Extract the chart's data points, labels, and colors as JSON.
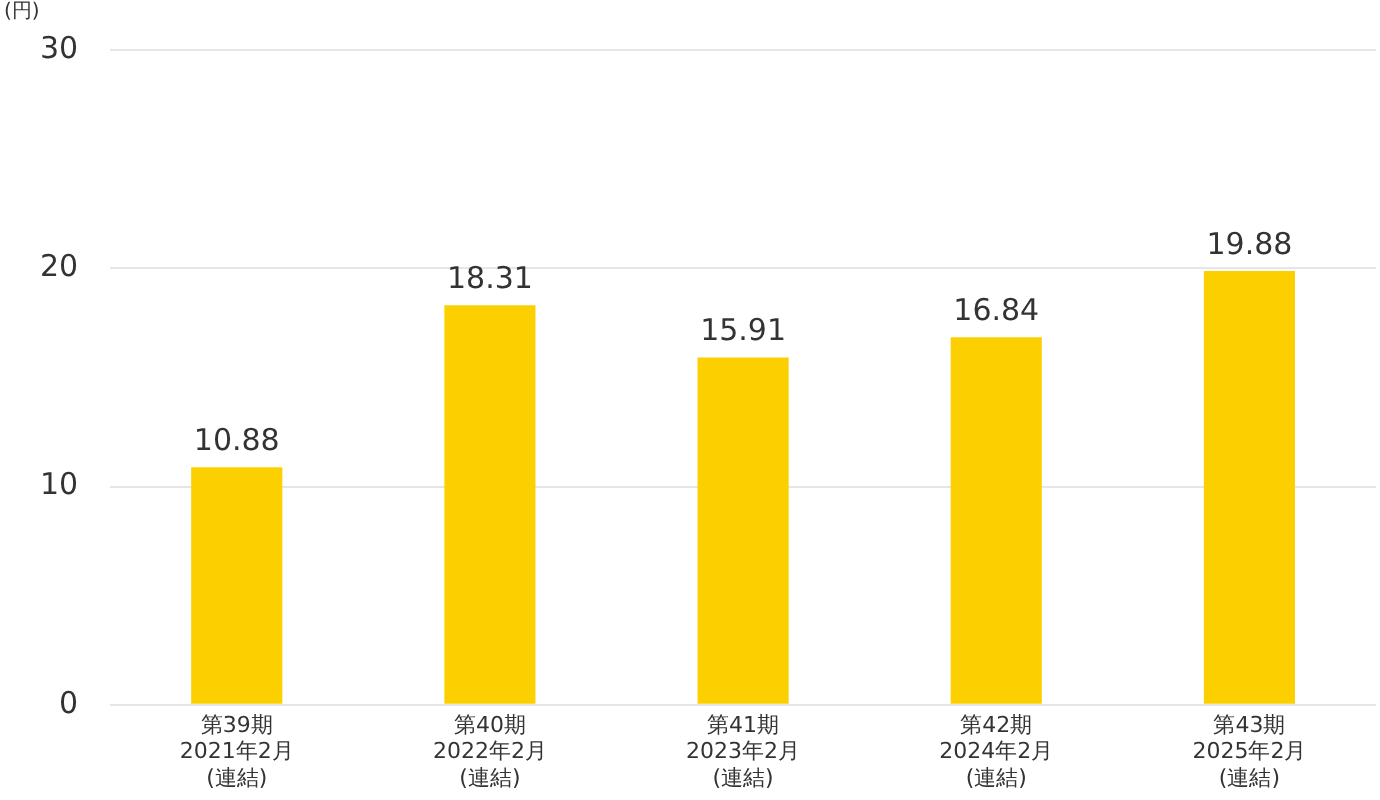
{
  "chart_data": {
    "type": "bar",
    "ylabel": "(円)",
    "categories": [
      "第39期\n2021年2月\n(連結)",
      "第40期\n2022年2月\n(連結)",
      "第41期\n2023年2月\n(連結)",
      "第42期\n2024年2月\n(連結)",
      "第43期\n2025年2月\n(連結)"
    ],
    "values": [
      10.88,
      18.31,
      15.91,
      16.84,
      19.88
    ],
    "color": "#fcd000",
    "ylim": [
      0,
      30
    ],
    "yticks": [
      0,
      10,
      20,
      30
    ],
    "grid": "y",
    "data_labels": true,
    "legend": false
  }
}
